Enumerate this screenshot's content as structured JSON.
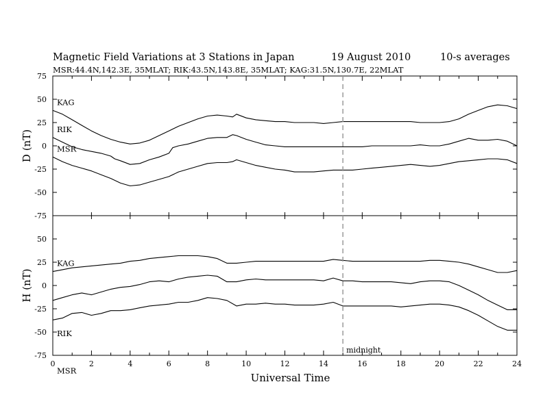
{
  "header": {
    "title": "Magnetic Field Variations at 3 Stations in Japan",
    "date": "19 August 2010",
    "averaging": "10-s averages",
    "subtitle": "MSR:44.4N,142.3E, 35MLAT;  RIK:43.5N,143.8E, 35MLAT;  KAG:31.5N,130.7E, 22MLAT"
  },
  "chart_data": {
    "type": "line",
    "xlabel": "Universal Time",
    "x_ticks": [
      0,
      2,
      4,
      6,
      8,
      10,
      12,
      14,
      16,
      18,
      20,
      22,
      24
    ],
    "xlim": [
      0,
      24
    ],
    "grid": false,
    "annotation": {
      "text": "midnight",
      "x": 15,
      "style": "dashed vertical line"
    },
    "panels": [
      {
        "ylabel": "D (nT)",
        "ylim": [
          -75,
          75
        ],
        "y_ticks": [
          75,
          50,
          25,
          0,
          -25,
          -50,
          -75
        ],
        "series": [
          {
            "name": "KAG",
            "x": [
              0,
              0.5,
              1,
              1.5,
              2,
              2.5,
              3,
              3.5,
              4,
              4.5,
              5,
              5.5,
              6,
              6.5,
              7,
              7.5,
              8,
              8.5,
              9,
              9.3,
              9.5,
              10,
              10.5,
              11,
              11.5,
              12,
              12.5,
              13,
              13.5,
              14,
              14.5,
              15,
              15.5,
              16,
              16.5,
              17,
              17.5,
              18,
              18.5,
              19,
              19.5,
              20,
              20.5,
              21,
              21.5,
              22,
              22.5,
              23,
              23.5,
              24
            ],
            "y": [
              38,
              34,
              28,
              22,
              16,
              11,
              7,
              4,
              2,
              3,
              6,
              11,
              16,
              21,
              25,
              29,
              32,
              33,
              32,
              31,
              34,
              30,
              28,
              27,
              26,
              26,
              25,
              25,
              25,
              24,
              25,
              26,
              26,
              26,
              26,
              26,
              26,
              26,
              26,
              25,
              25,
              25,
              26,
              29,
              34,
              38,
              42,
              44,
              43,
              40
            ]
          },
          {
            "name": "RIK",
            "x": [
              0,
              0.5,
              1,
              1.5,
              2,
              2.5,
              3,
              3.2,
              3.5,
              4,
              4.5,
              5,
              5.5,
              6,
              6.2,
              6.5,
              7,
              7.5,
              8,
              8.5,
              9,
              9.3,
              9.5,
              10,
              10.5,
              11,
              11.5,
              12,
              12.5,
              13,
              13.5,
              14,
              14.5,
              15,
              15.5,
              16,
              16.5,
              17,
              17.5,
              18,
              18.5,
              19,
              19.5,
              20,
              20.5,
              21,
              21.5,
              22,
              22.5,
              23,
              23.5,
              24
            ],
            "y": [
              9,
              4,
              -1,
              -4,
              -6,
              -8,
              -11,
              -14,
              -16,
              -20,
              -19,
              -15,
              -12,
              -8,
              -2,
              0,
              2,
              5,
              8,
              9,
              9,
              12,
              11,
              7,
              4,
              1,
              0,
              -1,
              -1,
              -1,
              -1,
              -1,
              -1,
              -1,
              -1,
              -1,
              0,
              0,
              0,
              0,
              0,
              1,
              0,
              0,
              2,
              5,
              8,
              6,
              6,
              7,
              5,
              0
            ]
          },
          {
            "name": "MSR",
            "x": [
              0,
              0.5,
              1,
              1.5,
              2,
              2.5,
              3,
              3.5,
              4,
              4.5,
              5,
              5.5,
              6,
              6.5,
              7,
              7.5,
              8,
              8.5,
              9,
              9.3,
              9.5,
              10,
              10.5,
              11,
              11.5,
              12,
              12.5,
              13,
              13.5,
              14,
              14.5,
              15,
              15.5,
              16,
              16.5,
              17,
              17.5,
              18,
              18.5,
              19,
              19.5,
              20,
              20.5,
              21,
              21.5,
              22,
              22.5,
              23,
              23.5,
              24
            ],
            "y": [
              -12,
              -17,
              -21,
              -24,
              -27,
              -31,
              -35,
              -40,
              -43,
              -42,
              -39,
              -36,
              -33,
              -28,
              -25,
              -22,
              -19,
              -18,
              -18,
              -17,
              -15,
              -18,
              -21,
              -23,
              -25,
              -26,
              -28,
              -28,
              -28,
              -27,
              -26,
              -26,
              -26,
              -25,
              -24,
              -23,
              -22,
              -21,
              -20,
              -21,
              -22,
              -21,
              -19,
              -17,
              -16,
              -15,
              -14,
              -14,
              -15,
              -19
            ]
          }
        ]
      },
      {
        "ylabel": "H (nT)",
        "ylim": [
          -75,
          75
        ],
        "y_ticks": [
          75,
          50,
          25,
          0,
          -25,
          -50,
          -75
        ],
        "series": [
          {
            "name": "KAG",
            "x": [
              0,
              0.5,
              1,
              1.5,
              2,
              2.5,
              3,
              3.5,
              4,
              4.5,
              5,
              5.5,
              6,
              6.5,
              7,
              7.5,
              8,
              8.5,
              9,
              9.5,
              10,
              10.5,
              11,
              11.5,
              12,
              12.5,
              13,
              13.5,
              14,
              14.5,
              15,
              15.5,
              16,
              16.5,
              17,
              17.5,
              18,
              18.5,
              19,
              19.5,
              20,
              20.5,
              21,
              21.5,
              22,
              22.5,
              23,
              23.5,
              24
            ],
            "y": [
              15,
              17,
              19,
              20,
              21,
              22,
              23,
              24,
              26,
              27,
              29,
              30,
              31,
              32,
              32,
              32,
              31,
              29,
              24,
              24,
              25,
              26,
              26,
              26,
              26,
              26,
              26,
              26,
              26,
              28,
              27,
              26,
              26,
              26,
              26,
              26,
              26,
              26,
              26,
              27,
              27,
              26,
              25,
              23,
              20,
              17,
              14,
              14,
              16
            ]
          },
          {
            "name": "RIK",
            "x": [
              0,
              0.5,
              1,
              1.5,
              2,
              2.5,
              3,
              3.5,
              4,
              4.5,
              5,
              5.5,
              6,
              6.5,
              7,
              7.5,
              8,
              8.5,
              9,
              9.5,
              10,
              10.5,
              11,
              11.5,
              12,
              12.5,
              13,
              13.5,
              14,
              14.5,
              15,
              15.5,
              16,
              16.5,
              17,
              17.5,
              18,
              18.5,
              19,
              19.5,
              20,
              20.5,
              21,
              21.5,
              22,
              22.5,
              23,
              23.5,
              24
            ],
            "y": [
              -16,
              -13,
              -10,
              -8,
              -10,
              -7,
              -4,
              -2,
              -1,
              1,
              4,
              5,
              4,
              7,
              9,
              10,
              11,
              10,
              4,
              4,
              6,
              7,
              6,
              6,
              6,
              6,
              6,
              6,
              5,
              8,
              5,
              5,
              4,
              4,
              4,
              4,
              3,
              2,
              4,
              5,
              5,
              4,
              0,
              -5,
              -10,
              -16,
              -21,
              -26,
              -26
            ]
          },
          {
            "name": "MSR",
            "x": [
              0,
              0.5,
              1,
              1.5,
              2,
              2.5,
              3,
              3.5,
              4,
              4.5,
              5,
              5.5,
              6,
              6.5,
              7,
              7.5,
              8,
              8.5,
              9,
              9.5,
              10,
              10.5,
              11,
              11.5,
              12,
              12.5,
              13,
              13.5,
              14,
              14.5,
              15,
              15.5,
              16,
              16.5,
              17,
              17.5,
              18,
              18.5,
              19,
              19.5,
              20,
              20.5,
              21,
              21.5,
              22,
              22.5,
              23,
              23.5,
              24
            ],
            "y": [
              -37,
              -35,
              -30,
              -29,
              -32,
              -30,
              -27,
              -27,
              -26,
              -24,
              -22,
              -21,
              -20,
              -18,
              -18,
              -16,
              -13,
              -14,
              -16,
              -22,
              -20,
              -20,
              -19,
              -20,
              -20,
              -21,
              -21,
              -21,
              -20,
              -18,
              -22,
              -22,
              -22,
              -22,
              -22,
              -22,
              -23,
              -22,
              -21,
              -20,
              -20,
              -21,
              -23,
              -27,
              -32,
              -38,
              -44,
              -48,
              -48
            ]
          }
        ]
      }
    ]
  }
}
